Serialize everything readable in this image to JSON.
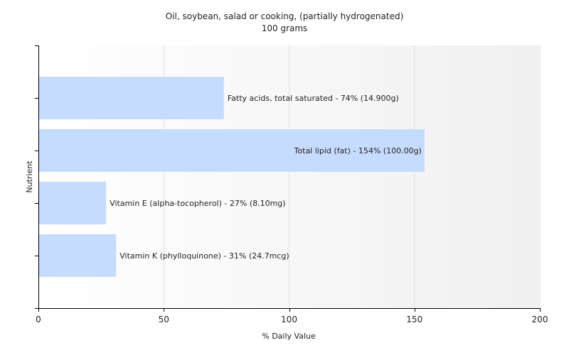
{
  "chart_data": {
    "type": "bar",
    "orientation": "horizontal",
    "title": "Oil, soybean, salad or cooking, (partially hydrogenated)",
    "subtitle": "100 grams",
    "xlabel": "% Daily Value",
    "ylabel": "Nutrient",
    "xlim": [
      0,
      200
    ],
    "xticks": [
      0,
      50,
      100,
      150,
      200
    ],
    "grid": true,
    "bar_color": "#c6dcff",
    "categories": [
      "Fatty acids, total saturated",
      "Total lipid (fat)",
      "Vitamin E (alpha-tocopherol)",
      "Vitamin K (phylloquinone)"
    ],
    "values": [
      74,
      154,
      27,
      31
    ],
    "amounts": [
      "14.900g",
      "100.00g",
      "8.10mg",
      "24.7mcg"
    ],
    "bar_labels": [
      "Fatty acids, total saturated - 74% (14.900g)",
      "Total lipid (fat) - 154% (100.00g)",
      "Vitamin E (alpha-tocopherol) - 27% (8.10mg)",
      "Vitamin K (phylloquinone) - 31% (24.7mcg)"
    ]
  }
}
